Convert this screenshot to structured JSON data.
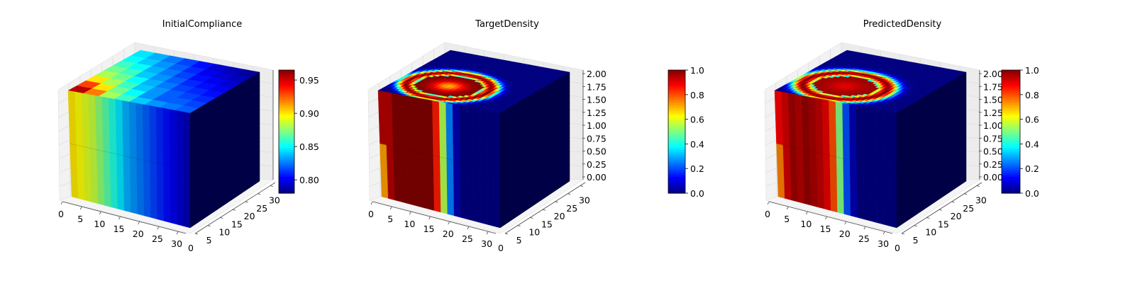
{
  "chart_data": [
    {
      "type": "heatmap",
      "title": "InitialCompliance",
      "xticks": [
        "0",
        "5",
        "10",
        "15",
        "20",
        "25",
        "30"
      ],
      "yticks": [
        "0",
        "5",
        "10",
        "15",
        "20",
        "25",
        "30"
      ],
      "zticks": [],
      "xlim": [
        0,
        32
      ],
      "ylim": [
        0,
        32
      ],
      "zlim": [
        0,
        2
      ],
      "colorbar": {
        "ticks": [
          "0.80",
          "0.85",
          "0.90",
          "0.95"
        ],
        "min": 0.78,
        "max": 0.965,
        "colormap": "jet"
      },
      "top_face": {
        "values": [
          [
            0.955,
            0.92,
            0.88,
            0.86,
            0.84,
            0.83,
            0.825,
            0.82
          ],
          [
            0.93,
            0.9,
            0.87,
            0.85,
            0.83,
            0.82,
            0.82,
            0.815
          ],
          [
            0.9,
            0.88,
            0.86,
            0.84,
            0.83,
            0.82,
            0.815,
            0.81
          ],
          [
            0.88,
            0.87,
            0.85,
            0.835,
            0.825,
            0.815,
            0.81,
            0.805
          ],
          [
            0.87,
            0.86,
            0.84,
            0.83,
            0.82,
            0.81,
            0.805,
            0.8
          ],
          [
            0.86,
            0.85,
            0.835,
            0.825,
            0.815,
            0.805,
            0.8,
            0.795
          ],
          [
            0.85,
            0.84,
            0.83,
            0.82,
            0.81,
            0.8,
            0.795,
            0.79
          ],
          [
            0.845,
            0.835,
            0.825,
            0.815,
            0.805,
            0.795,
            0.79,
            0.785
          ]
        ]
      },
      "front_face": {
        "values": [
          0.9,
          0.895,
          0.89,
          0.885,
          0.875,
          0.865,
          0.855,
          0.845,
          0.835,
          0.83,
          0.825,
          0.82,
          0.815,
          0.81,
          0.805,
          0.8,
          0.795,
          0.79
        ]
      },
      "side_value": 0.78
    },
    {
      "type": "heatmap",
      "title": "TargetDensity",
      "xticks": [
        "0",
        "5",
        "10",
        "15",
        "20",
        "25",
        "30"
      ],
      "yticks": [
        "0",
        "5",
        "10",
        "15",
        "20",
        "25",
        "30"
      ],
      "zticks": [
        "0.00",
        "0.25",
        "0.50",
        "0.75",
        "1.00",
        "1.25",
        "1.50",
        "1.75",
        "2.00"
      ],
      "xlim": [
        0,
        32
      ],
      "ylim": [
        0,
        32
      ],
      "zlim": [
        0,
        2
      ],
      "colorbar": {
        "ticks": [
          "0.0",
          "0.2",
          "0.4",
          "0.6",
          "0.8",
          "1.0"
        ],
        "min": 0,
        "max": 1,
        "colormap": "jet"
      },
      "top_face": {
        "type": "ring",
        "center": [
          8,
          8
        ],
        "radius": 10,
        "width": 2.2,
        "inner": 1.0,
        "outer": 0.0,
        "center_value": 0.7
      },
      "front_face": {
        "values": [
          0.95,
          0.95,
          1.0,
          1.0,
          1.0,
          1.0,
          1.0,
          1.0,
          0.85,
          0.55,
          0.25,
          0.05,
          0.0,
          0.0,
          0.0,
          0.0,
          0.0,
          0.0
        ],
        "lower_first": 0.72
      },
      "side_value": 0.0
    },
    {
      "type": "heatmap",
      "title": "PredictedDensity",
      "xticks": [
        "0",
        "5",
        "10",
        "15",
        "20",
        "25",
        "30"
      ],
      "yticks": [
        "0",
        "5",
        "10",
        "15",
        "20",
        "25",
        "30"
      ],
      "zticks": [
        "0.00",
        "0.25",
        "0.50",
        "0.75",
        "1.00",
        "1.25",
        "1.50",
        "1.75",
        "2.00"
      ],
      "xlim": [
        0,
        32
      ],
      "ylim": [
        0,
        32
      ],
      "zlim": [
        0,
        2
      ],
      "colorbar": {
        "ticks": [
          "0.0",
          "0.2",
          "0.4",
          "0.6",
          "0.8",
          "1.0"
        ],
        "min": 0,
        "max": 1,
        "colormap": "jet"
      },
      "top_face": {
        "type": "ring",
        "center": [
          8,
          8
        ],
        "radius": 10,
        "width": 2.6,
        "inner": 0.97,
        "outer": 0.0,
        "center_value": 0.9
      },
      "front_face": {
        "values": [
          0.88,
          0.92,
          0.97,
          0.95,
          0.98,
          0.96,
          0.94,
          0.9,
          0.8,
          0.5,
          0.2,
          0.05,
          0.0,
          0.0,
          0.0,
          0.0,
          0.0,
          0.0
        ],
        "lower_first": 0.75
      },
      "side_value": 0.0
    }
  ]
}
